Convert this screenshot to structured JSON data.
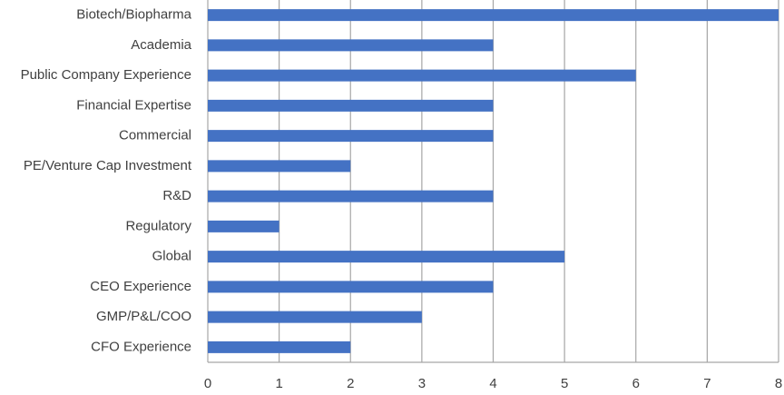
{
  "chart_data": {
    "type": "barh",
    "categories": [
      "Biotech/Biopharma",
      "Academia",
      "Public Company Experience",
      "Financial Expertise",
      "Commercial",
      "PE/Venture Cap Investment",
      "R&D",
      "Regulatory",
      "Global",
      "CEO Experience",
      "GMP/P&L/COO",
      "CFO Experience"
    ],
    "values": [
      8,
      4,
      6,
      4,
      4,
      2,
      4,
      1,
      5,
      4,
      3,
      2
    ],
    "color": "#4472c4",
    "xlim": [
      0,
      8
    ],
    "xticks": [
      0,
      1,
      2,
      3,
      4,
      5,
      6,
      7,
      8
    ],
    "grid": true
  }
}
